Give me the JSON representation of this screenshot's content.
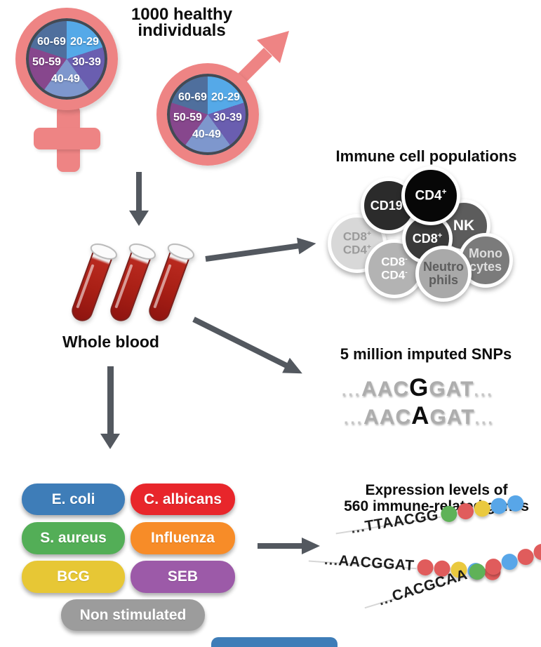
{
  "header": {
    "title_line1": "1000 healthy",
    "title_line2": "individuals"
  },
  "demographics": {
    "age_groups": {
      "g2029": "20-29",
      "g3039": "30-39",
      "g4049": "40-49",
      "g5059": "50-59",
      "g6069": "60-69"
    },
    "slice_colors": {
      "20-29": "#55a9e8",
      "30-39": "#6a5eb0",
      "40-49": "#7e97cd",
      "50-59": "#87478d",
      "60-69": "#4f6f9d"
    },
    "symbol_color": "#ee8484"
  },
  "whole_blood": {
    "label": "Whole blood"
  },
  "immune": {
    "title": "Immune cell populations",
    "cells": {
      "cd19": {
        "base": "CD19",
        "sup": "+",
        "bg": "#2b2b2b",
        "fg": "#ffffff"
      },
      "cd4": {
        "base": "CD4",
        "sup": "+",
        "bg": "#070707",
        "fg": "#ffffff"
      },
      "nk": {
        "base": "NK",
        "bg": "#5c5c5c",
        "fg": "#ffffff"
      },
      "cd8cd4pos": {
        "l1": "CD8",
        "s1": "+",
        "l2": "CD4",
        "s2": "+",
        "bg": "#d8d8d8",
        "fg": "#9a9a9a"
      },
      "cd8": {
        "base": "CD8",
        "sup": "+",
        "bg": "#3a3a3a",
        "fg": "#ffffff"
      },
      "cd8cd4neg": {
        "l1": "CD8",
        "s1": "-",
        "l2": "CD4",
        "s2": "-",
        "bg": "#b3b3b3",
        "fg": "#ffffff"
      },
      "neutrophils": {
        "l1": "Neutro",
        "l2": "phils",
        "bg": "#a9a9a9",
        "fg": "#5d5d5d"
      },
      "monocytes": {
        "l1": "Mono",
        "l2": "cytes",
        "bg": "#7b7b7b",
        "fg": "#dedede"
      }
    }
  },
  "snps": {
    "title": "5 million imputed SNPs",
    "sequences": [
      {
        "prefix": "...",
        "before": "AAC",
        "variant": "G",
        "after": "GAT",
        "suffix": "..."
      },
      {
        "prefix": "...",
        "before": "AAC",
        "variant": "A",
        "after": "GAT",
        "suffix": "..."
      }
    ]
  },
  "stimuli": {
    "items": [
      {
        "label": "E. coli",
        "color": "#3e7db8"
      },
      {
        "label": "C. albicans",
        "color": "#e8262b"
      },
      {
        "label": "S. aureus",
        "color": "#53ae57"
      },
      {
        "label": "Influenza",
        "color": "#f78c28"
      },
      {
        "label": "BCG",
        "color": "#e7c735"
      },
      {
        "label": "SEB",
        "color": "#9c5aa8"
      },
      {
        "label": "Non stimulated",
        "color": "#9c9c9c"
      }
    ]
  },
  "expression": {
    "title_line1": "Expression levels of",
    "title_line2": "560 immune-related genes",
    "dot_colors": {
      "green": "#5fb258",
      "red": "#e05c5c",
      "yellow": "#eac93f",
      "blue": "#58a6e8"
    },
    "strands": [
      {
        "prefix": "...",
        "sequence": "TTAACGG",
        "dots": [
          "green",
          "red",
          "yellow",
          "blue",
          "blue"
        ]
      },
      {
        "prefix": "...",
        "sequence": "AACGGAT",
        "dots": [
          "red",
          "red",
          "yellow",
          "blue",
          "red"
        ]
      },
      {
        "prefix": "...",
        "sequence": "CACGCAA",
        "dots": [
          "green",
          "red",
          "blue",
          "red",
          "red"
        ]
      }
    ]
  },
  "cropped_panel": {
    "color": "#3e7db8"
  },
  "arrow_color": "#53585f"
}
